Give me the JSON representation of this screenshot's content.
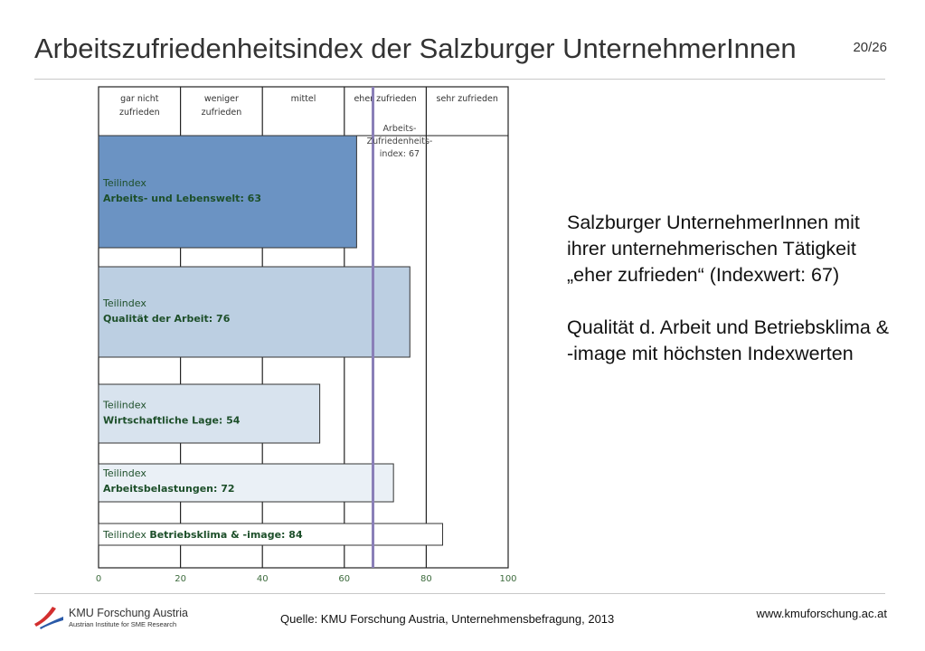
{
  "header": {
    "title": "Arbeitszufriedenheitsindex der Salzburger UnternehmerInnen",
    "page_number": "20/26"
  },
  "chart_data": {
    "type": "bar",
    "orientation": "horizontal",
    "xlim": [
      0,
      100
    ],
    "x_ticks": [
      "0",
      "20",
      "40",
      "60",
      "80",
      "100"
    ],
    "categories_top": [
      [
        "gar nicht",
        "zufrieden"
      ],
      [
        "weniger",
        "zufrieden"
      ],
      [
        "mittel"
      ],
      [
        "eher zufrieden"
      ],
      [
        "sehr zufrieden"
      ]
    ],
    "bars": [
      {
        "label_prefix": "Teilindex",
        "label_name": "Arbeits- und Lebenswelt: 63",
        "value": 63,
        "color": "#6b93c3",
        "inline": false
      },
      {
        "label_prefix": "Teilindex",
        "label_name": "Qualität der Arbeit: 76",
        "value": 76,
        "color": "#bccfe2",
        "inline": false
      },
      {
        "label_prefix": "Teilindex",
        "label_name": "Wirtschaftliche Lage: 54",
        "value": 54,
        "color": "#d8e3ee",
        "inline": false
      },
      {
        "label_prefix": "Teilindex",
        "label_name": "Arbeitsbelastungen: 72",
        "value": 72,
        "color": "#eaf0f6",
        "inline": false
      },
      {
        "label_prefix": "Teilindex",
        "label_name": "Betriebsklima & -image: 84",
        "value": 84,
        "color": "#ffffff",
        "inline": true
      }
    ],
    "reference_line": {
      "value": 67,
      "label": [
        "Arbeits-",
        "Zufriedenheits-",
        "index: 67"
      ],
      "color": "#8a7fb8"
    },
    "colors": {
      "label_text": "#1d4f2a",
      "axis_text": "#3d6b3d",
      "category_text": "#333333"
    }
  },
  "commentary": {
    "paragraph1": "Salzburger UnternehmerInnen mit ihrer unternehmerischen Tätigkeit „eher zufrieden“ (Indexwert: 67)",
    "paragraph2": "Qualität d. Arbeit und Betriebsklima & -image mit höchsten Indexwerten"
  },
  "footer": {
    "logo_name": "KMU Forschung Austria",
    "logo_sub": "Austrian Institute for SME Research",
    "source": "Quelle: KMU Forschung Austria, Unternehmensbefragung, 2013",
    "url": "www.kmuforschung.ac.at"
  },
  "icons": {
    "logo": "kmu-logo-icon"
  }
}
